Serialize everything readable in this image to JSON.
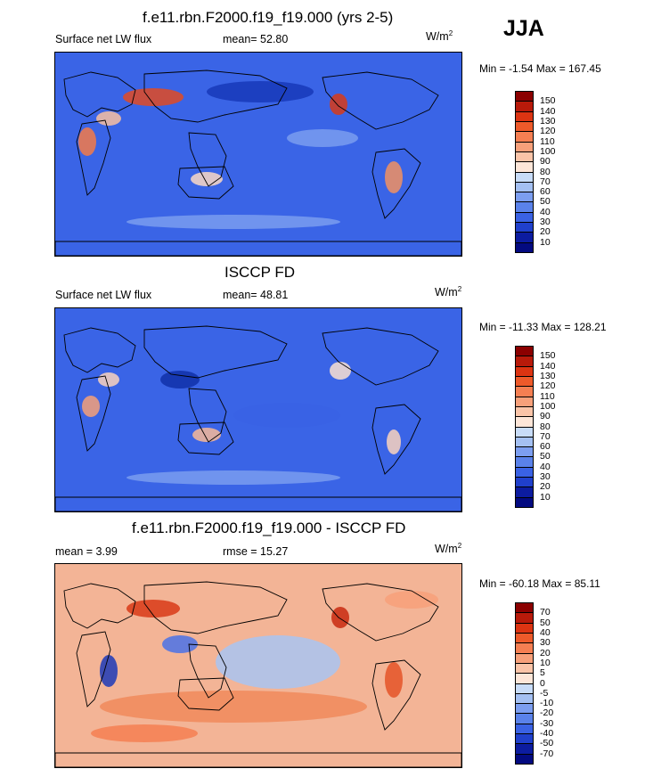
{
  "season": "JJA",
  "panels": [
    {
      "title": "f.e11.rbn.F2000.f19_f19.000 (yrs 2-5)",
      "left_label": "Surface net LW flux",
      "center_label": "mean=  52.80",
      "units": "W/m",
      "units_sup": "2",
      "minmax": "Min =  -1.54 Max = 167.45",
      "levels": [
        "150",
        "140",
        "130",
        "120",
        "110",
        "100",
        "90",
        "80",
        "70",
        "60",
        "50",
        "40",
        "30",
        "20",
        "10"
      ],
      "colors": [
        "#8b0000",
        "#b81a0a",
        "#dc3412",
        "#ee5a2a",
        "#f57f52",
        "#f7a07a",
        "#fac4a8",
        "#fde6d8",
        "#c8dcf8",
        "#a4c0f2",
        "#7c9ef0",
        "#5a82ea",
        "#3a62e4",
        "#2040cc",
        "#0c1ca0",
        "#030a80"
      ]
    },
    {
      "title": "ISCCP FD",
      "left_label": "Surface net LW flux",
      "center_label": "mean=  48.81",
      "units": "W/m",
      "units_sup": "2",
      "minmax": "Min = -11.33 Max = 128.21",
      "levels": [
        "150",
        "140",
        "130",
        "120",
        "110",
        "100",
        "90",
        "80",
        "70",
        "60",
        "50",
        "40",
        "30",
        "20",
        "10"
      ],
      "colors": [
        "#8b0000",
        "#b81a0a",
        "#dc3412",
        "#ee5a2a",
        "#f57f52",
        "#f7a07a",
        "#fac4a8",
        "#fde6d8",
        "#c8dcf8",
        "#a4c0f2",
        "#7c9ef0",
        "#5a82ea",
        "#3a62e4",
        "#2040cc",
        "#0c1ca0",
        "#030a80"
      ]
    },
    {
      "title": "f.e11.rbn.F2000.f19_f19.000 - ISCCP FD",
      "left_label": "mean =  3.99",
      "center_label": "rmse =  15.27",
      "units": "W/m",
      "units_sup": "2",
      "minmax": "Min = -60.18 Max =  85.11",
      "levels": [
        "70",
        "50",
        "40",
        "30",
        "20",
        "10",
        "5",
        "0",
        "-5",
        "-10",
        "-20",
        "-30",
        "-40",
        "-50",
        "-70"
      ],
      "colors": [
        "#8b0000",
        "#b81a0a",
        "#dc3412",
        "#ee5a2a",
        "#f57f52",
        "#f7a07a",
        "#fac4a8",
        "#fde6d8",
        "#c8dcf8",
        "#a4c0f2",
        "#7c9ef0",
        "#5a82ea",
        "#3a62e4",
        "#2040cc",
        "#0c1ca0",
        "#030a80"
      ]
    }
  ]
}
